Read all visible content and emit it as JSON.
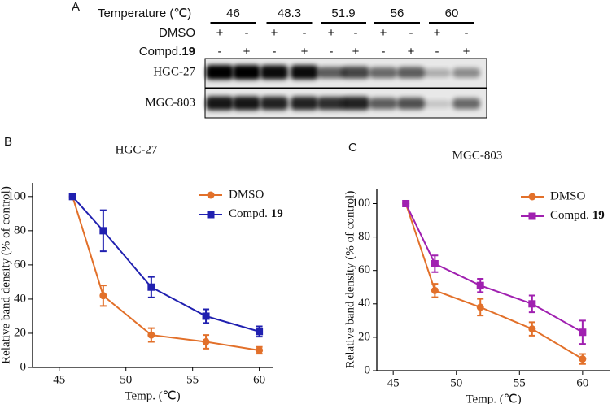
{
  "blot": {
    "panel_label": "A",
    "temperature_label": "Temperature (℃)",
    "temperatures": [
      "46",
      "48.3",
      "51.9",
      "56",
      "60"
    ],
    "dmso_label": "DMSO",
    "dmso_signs": [
      "+",
      "-",
      "+",
      "-",
      "+",
      "-",
      "+",
      "-",
      "+",
      "-"
    ],
    "compound_label": "Compd.",
    "compound_number": "19",
    "compound_signs": [
      "-",
      "+",
      "-",
      "+",
      "-",
      "+",
      "-",
      "+",
      "-",
      "+"
    ],
    "rows": [
      "HGC-27",
      "MGC-803"
    ]
  },
  "chart_data": [
    {
      "type": "line",
      "panel_label": "B",
      "title": "HGC-27",
      "x_label": "Temp. (℃)",
      "y_label": "Relative band density (% of control)",
      "x": [
        46,
        48.3,
        51.9,
        56,
        60
      ],
      "xlim": [
        43,
        61
      ],
      "xticks": [
        45,
        50,
        55,
        60
      ],
      "ylim": [
        0,
        108
      ],
      "yticks": [
        0,
        20,
        40,
        60,
        80,
        100
      ],
      "series": [
        {
          "name": "DMSO",
          "color": "#e2702a",
          "marker": "circle",
          "values": [
            100,
            42,
            19,
            15,
            10
          ],
          "errors": [
            0,
            6,
            4,
            4,
            2
          ]
        },
        {
          "name": "Compd. 19",
          "color": "#2020b0",
          "marker": "square",
          "values": [
            100,
            80,
            47,
            30,
            21
          ],
          "errors": [
            0,
            12,
            6,
            4,
            3
          ]
        }
      ]
    },
    {
      "type": "line",
      "panel_label": "C",
      "title": "MGC-803",
      "x_label": "Temp. (℃)",
      "y_label": "Relative band density (% of control)",
      "x": [
        46,
        48.3,
        51.9,
        56,
        60
      ],
      "xlim": [
        43.7,
        62.2
      ],
      "xticks": [
        45,
        50,
        55,
        60
      ],
      "ylim": [
        0,
        109
      ],
      "yticks": [
        0,
        20,
        40,
        60,
        80,
        100
      ],
      "series": [
        {
          "name": "DMSO",
          "color": "#e2702a",
          "marker": "circle",
          "values": [
            100,
            48,
            38,
            25,
            7
          ],
          "errors": [
            0,
            4,
            5,
            4,
            3
          ]
        },
        {
          "name": "Compd. 19",
          "color": "#a020b0",
          "marker": "square",
          "values": [
            100,
            64,
            51,
            40,
            23
          ],
          "errors": [
            0,
            5,
            4,
            5,
            7
          ]
        }
      ]
    }
  ]
}
